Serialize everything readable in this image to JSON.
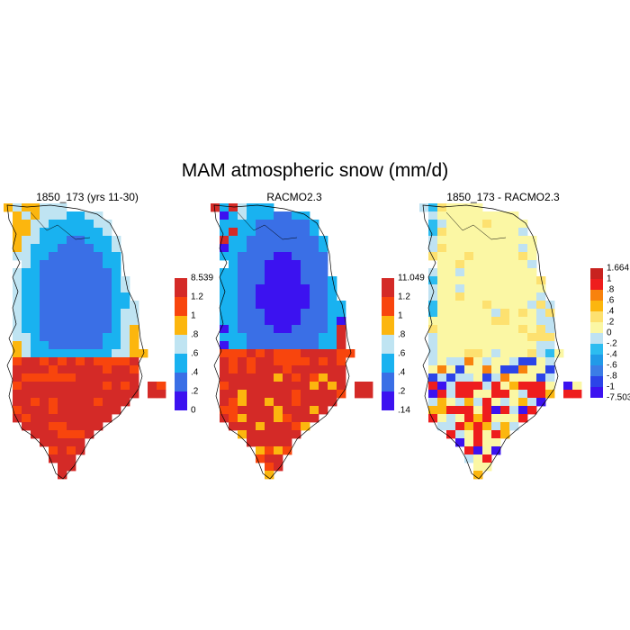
{
  "title": "MAM atmospheric snow (mm/d)",
  "scale_a": {
    "colors": [
      "#3c12f0",
      "#3a6fe6",
      "#19b2f0",
      "#bfe4f2",
      "#fcb60e",
      "#f8450d",
      "#d42a27"
    ],
    "labels": [
      "8.539",
      "1.2",
      "1",
      ".8",
      ".6",
      ".4",
      ".2",
      "0"
    ]
  },
  "scale_b": {
    "colors": [
      "#3c12f0",
      "#3a6fe6",
      "#19b2f0",
      "#bfe4f2",
      "#fcb60e",
      "#f8450d",
      "#d42a27"
    ],
    "labels": [
      "11.049",
      "1.2",
      "1",
      ".8",
      ".6",
      ".4",
      ".2",
      ".14"
    ]
  },
  "scale_c": {
    "colors": [
      "#3c12f0",
      "#2c44e8",
      "#3b7de6",
      "#219ae8",
      "#2cbcf0",
      "#bfe2f2",
      "#fbf7a4",
      "#fde170",
      "#fcb60e",
      "#f8820d",
      "#ee1d1d",
      "#c8221f"
    ],
    "labels": [
      "1.664",
      "1",
      ".8",
      ".6",
      ".4",
      ".2",
      "0",
      "-.2",
      "-.4",
      "-.6",
      "-.8",
      "-1",
      "-7.503"
    ]
  },
  "panels": [
    {
      "title": "1850_173 (yrs 11-30)",
      "scale": "scale_a"
    },
    {
      "title": "RACMO2.3",
      "scale": "scale_b"
    },
    {
      "title": "1850_173 - RACMO2.3",
      "scale": "scale_c"
    }
  ]
}
